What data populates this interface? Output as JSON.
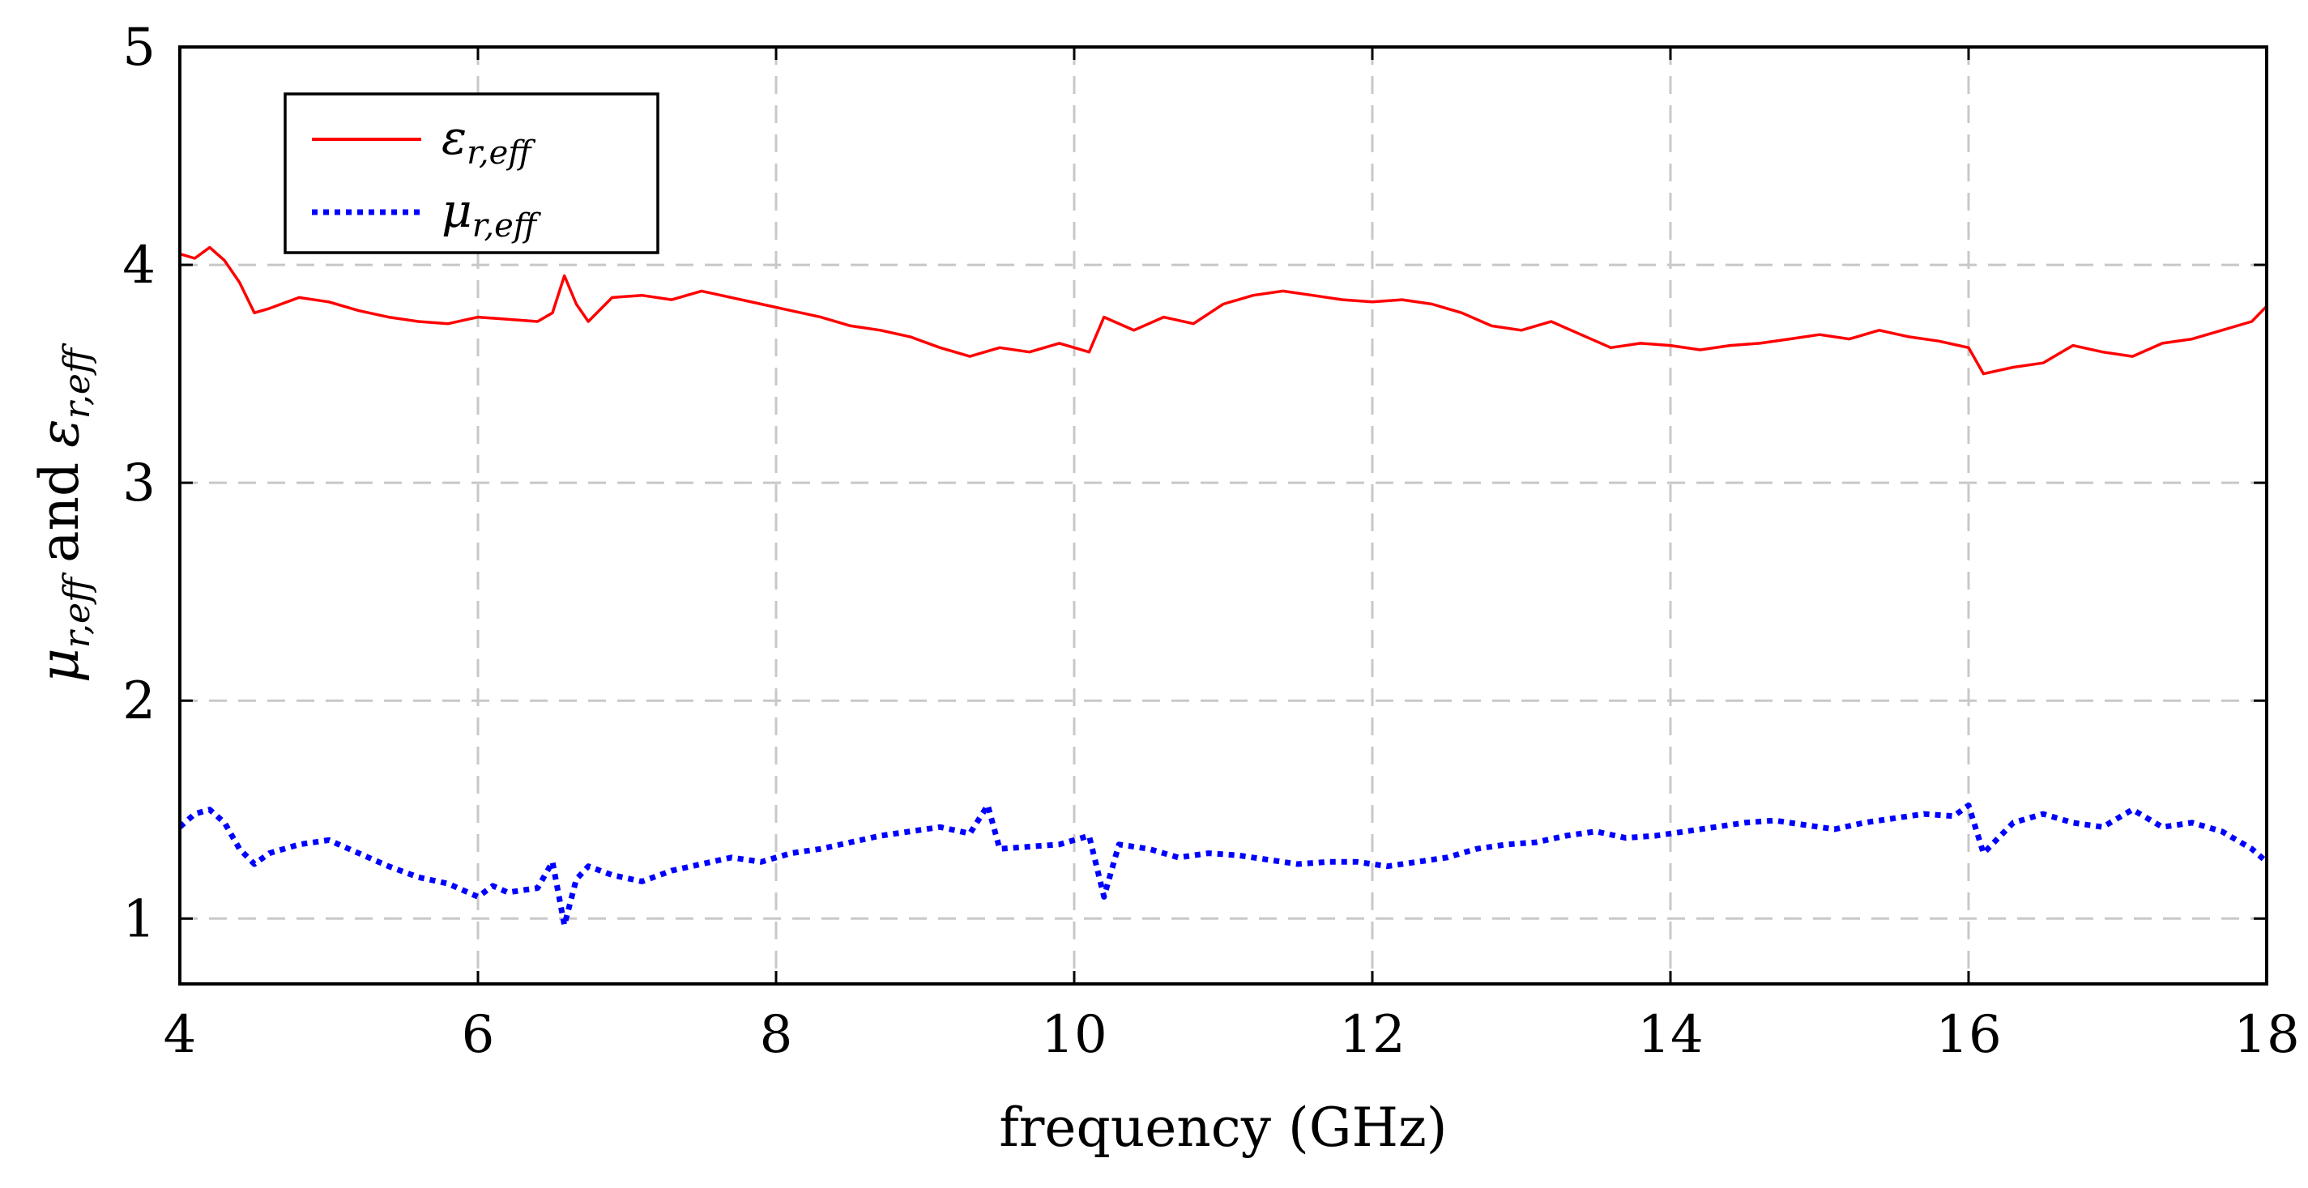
{
  "chart_data": {
    "type": "line",
    "title": "",
    "xlabel": "frequency (GHz)",
    "ylabel": {
      "mu_symbol": "μ",
      "mu_subscript": "r,eff",
      "connector": "and",
      "eps_symbol": "ε",
      "eps_subscript": "r,eff"
    },
    "xlim": [
      4,
      18
    ],
    "ylim": [
      0.7,
      5
    ],
    "xticks": [
      4,
      6,
      8,
      10,
      12,
      14,
      16,
      18
    ],
    "yticks": [
      1,
      2,
      3,
      4,
      5
    ],
    "grid": true,
    "legend_position": "top-left",
    "series": [
      {
        "name": "ε_r,eff",
        "legend_symbol": "ε",
        "legend_subscript": "r,eff",
        "color": "#ff0000",
        "style": "solid",
        "x": [
          4.0,
          4.1,
          4.2,
          4.3,
          4.4,
          4.5,
          4.6,
          4.8,
          5.0,
          5.2,
          5.4,
          5.6,
          5.8,
          6.0,
          6.2,
          6.4,
          6.5,
          6.58,
          6.66,
          6.74,
          6.9,
          7.1,
          7.3,
          7.5,
          7.7,
          7.9,
          8.1,
          8.3,
          8.5,
          8.7,
          8.9,
          9.1,
          9.3,
          9.5,
          9.7,
          9.9,
          10.1,
          10.2,
          10.4,
          10.6,
          10.8,
          11.0,
          11.2,
          11.4,
          11.6,
          11.8,
          12.0,
          12.2,
          12.4,
          12.6,
          12.8,
          13.0,
          13.2,
          13.4,
          13.6,
          13.8,
          14.0,
          14.2,
          14.4,
          14.6,
          14.8,
          15.0,
          15.2,
          15.4,
          15.6,
          15.8,
          16.0,
          16.1,
          16.3,
          16.5,
          16.7,
          16.9,
          17.1,
          17.3,
          17.5,
          17.7,
          17.9,
          18.0
        ],
        "y": [
          4.05,
          4.03,
          4.08,
          4.02,
          3.92,
          3.78,
          3.8,
          3.85,
          3.83,
          3.79,
          3.76,
          3.74,
          3.73,
          3.76,
          3.75,
          3.74,
          3.78,
          3.95,
          3.82,
          3.74,
          3.85,
          3.86,
          3.84,
          3.88,
          3.85,
          3.82,
          3.79,
          3.76,
          3.72,
          3.7,
          3.67,
          3.62,
          3.58,
          3.62,
          3.6,
          3.64,
          3.6,
          3.76,
          3.7,
          3.76,
          3.73,
          3.82,
          3.86,
          3.88,
          3.86,
          3.84,
          3.83,
          3.84,
          3.82,
          3.78,
          3.72,
          3.7,
          3.74,
          3.68,
          3.62,
          3.64,
          3.63,
          3.61,
          3.63,
          3.64,
          3.66,
          3.68,
          3.66,
          3.7,
          3.67,
          3.65,
          3.62,
          3.5,
          3.53,
          3.55,
          3.63,
          3.6,
          3.58,
          3.64,
          3.66,
          3.7,
          3.74,
          3.81
        ]
      },
      {
        "name": "μ_r,eff",
        "legend_symbol": "μ",
        "legend_subscript": "r,eff",
        "color": "#0000ff",
        "style": "dotted",
        "x": [
          4.0,
          4.1,
          4.2,
          4.3,
          4.4,
          4.5,
          4.6,
          4.8,
          5.0,
          5.2,
          5.4,
          5.6,
          5.8,
          6.0,
          6.1,
          6.2,
          6.4,
          6.5,
          6.58,
          6.66,
          6.74,
          6.9,
          7.1,
          7.3,
          7.5,
          7.7,
          7.9,
          8.1,
          8.3,
          8.5,
          8.7,
          8.9,
          9.1,
          9.3,
          9.42,
          9.5,
          9.7,
          9.9,
          10.1,
          10.2,
          10.3,
          10.5,
          10.7,
          10.9,
          11.1,
          11.3,
          11.5,
          11.7,
          11.9,
          12.1,
          12.3,
          12.5,
          12.7,
          12.9,
          13.1,
          13.3,
          13.5,
          13.7,
          13.9,
          14.1,
          14.3,
          14.5,
          14.7,
          14.9,
          15.1,
          15.3,
          15.5,
          15.7,
          15.9,
          16.0,
          16.1,
          16.3,
          16.5,
          16.7,
          16.9,
          17.1,
          17.3,
          17.5,
          17.7,
          17.9,
          18.0
        ],
        "y": [
          1.42,
          1.48,
          1.5,
          1.44,
          1.32,
          1.25,
          1.3,
          1.34,
          1.36,
          1.3,
          1.24,
          1.19,
          1.16,
          1.1,
          1.15,
          1.12,
          1.14,
          1.26,
          0.97,
          1.18,
          1.24,
          1.2,
          1.17,
          1.22,
          1.25,
          1.28,
          1.26,
          1.3,
          1.32,
          1.35,
          1.38,
          1.4,
          1.42,
          1.39,
          1.52,
          1.32,
          1.33,
          1.34,
          1.38,
          1.1,
          1.34,
          1.32,
          1.28,
          1.3,
          1.29,
          1.27,
          1.25,
          1.26,
          1.26,
          1.24,
          1.26,
          1.28,
          1.32,
          1.34,
          1.35,
          1.38,
          1.4,
          1.37,
          1.38,
          1.4,
          1.42,
          1.44,
          1.45,
          1.43,
          1.41,
          1.44,
          1.46,
          1.48,
          1.47,
          1.52,
          1.3,
          1.44,
          1.48,
          1.44,
          1.42,
          1.5,
          1.42,
          1.44,
          1.4,
          1.32,
          1.26
        ]
      }
    ]
  }
}
